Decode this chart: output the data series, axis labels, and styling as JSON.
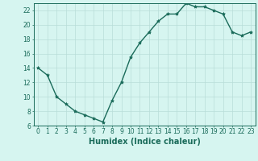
{
  "x": [
    0,
    1,
    2,
    3,
    4,
    5,
    6,
    7,
    8,
    9,
    10,
    11,
    12,
    13,
    14,
    15,
    16,
    17,
    18,
    19,
    20,
    21,
    22,
    23
  ],
  "y": [
    14,
    13,
    10,
    9,
    8,
    7.5,
    7,
    6.5,
    9.5,
    12,
    15.5,
    17.5,
    19,
    20.5,
    21.5,
    21.5,
    23,
    22.5,
    22.5,
    22,
    21.5,
    19,
    18.5,
    19
  ],
  "line_color": "#1a6b5a",
  "marker": "*",
  "marker_size": 3,
  "bg_color": "#d6f5f0",
  "grid_color": "#b8ddd8",
  "xlabel": "Humidex (Indice chaleur)",
  "ylim": [
    6,
    23
  ],
  "xlim": [
    -0.5,
    23.5
  ],
  "yticks": [
    6,
    8,
    10,
    12,
    14,
    16,
    18,
    20,
    22
  ],
  "xticks": [
    0,
    1,
    2,
    3,
    4,
    5,
    6,
    7,
    8,
    9,
    10,
    11,
    12,
    13,
    14,
    15,
    16,
    17,
    18,
    19,
    20,
    21,
    22,
    23
  ],
  "xtick_labels": [
    "0",
    "1",
    "2",
    "3",
    "4",
    "5",
    "6",
    "7",
    "8",
    "9",
    "10",
    "11",
    "12",
    "13",
    "14",
    "15",
    "16",
    "17",
    "18",
    "19",
    "20",
    "21",
    "22",
    "23"
  ],
  "font_color": "#1a6b5a",
  "tick_fontsize": 5.5,
  "xlabel_fontsize": 7
}
